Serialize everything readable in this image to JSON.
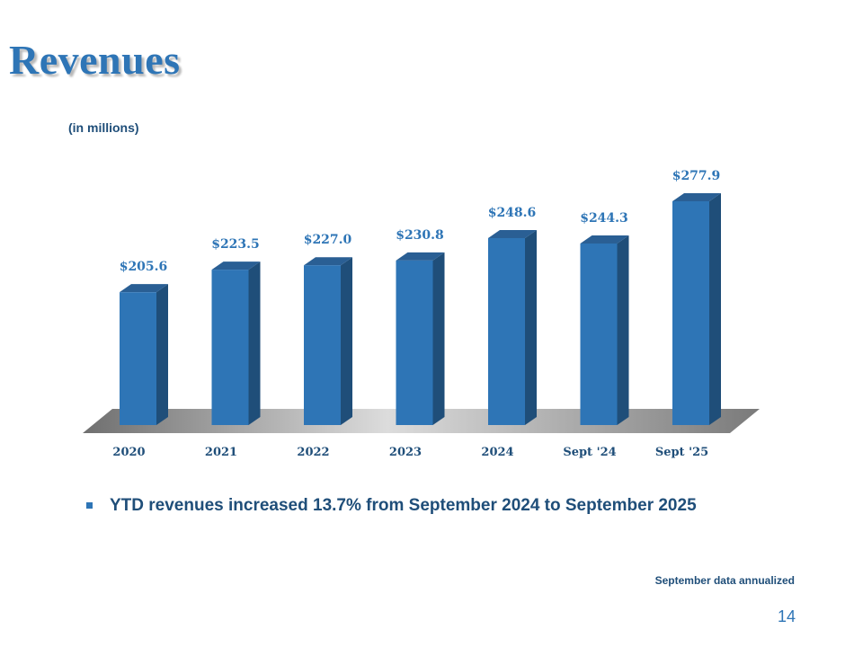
{
  "slide": {
    "title": "Revenues",
    "units_note": "(in millions)",
    "bullet_text": "YTD revenues increased 13.7% from September 2024 to September 2025",
    "footnote": "September data annualized",
    "page_number": "14"
  },
  "chart_data": {
    "type": "bar",
    "title": "Revenues",
    "ylabel": "(in millions)",
    "xlabel": "",
    "categories": [
      "2020",
      "2021",
      "2022",
      "2023",
      "2024",
      "Sept '24",
      "Sept '25"
    ],
    "values": [
      205.6,
      223.5,
      227.0,
      230.8,
      248.6,
      244.3,
      277.9
    ],
    "data_labels": [
      "$205.6",
      "$223.5",
      "$227.0",
      "$230.8",
      "$248.6",
      "$244.3",
      "$277.9"
    ],
    "ylim": [
      100,
      290
    ],
    "grid": false,
    "legend": "none"
  },
  "colors": {
    "bar_front": "#2e75b6",
    "bar_side": "#1f4e79",
    "bar_top": "#2a5f94",
    "label": "#2e75b6",
    "tick_label": "#1f4e79",
    "floor_light": "#d9d9d9",
    "floor_dark": "#6f6f6f"
  }
}
